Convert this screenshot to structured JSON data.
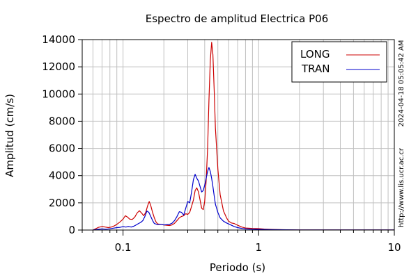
{
  "chart_data": {
    "type": "line",
    "title": "Espectro de amplitud Electrica P06",
    "xlabel": "Periodo (s)",
    "ylabel": "Amplitud (cm/s)",
    "xscale": "log",
    "xlim": [
      0.05,
      10
    ],
    "ylim": [
      0,
      14000
    ],
    "x_ticks": [
      0.1,
      1,
      10
    ],
    "x_tick_labels": [
      "0.1",
      "1",
      "10"
    ],
    "y_ticks": [
      0,
      2000,
      4000,
      6000,
      8000,
      10000,
      12000,
      14000
    ],
    "y_tick_labels": [
      "0",
      "2000",
      "4000",
      "6000",
      "8000",
      "10000",
      "12000",
      "14000"
    ],
    "grid": true,
    "legend_position": "top-right",
    "side_texts": [
      "2024-04-18 05:05:42 AM",
      "http://www.lis.ucr.ac.cr"
    ],
    "series": [
      {
        "name": "LONG",
        "color": "#cc0000",
        "points": [
          [
            0.06,
            0
          ],
          [
            0.063,
            100
          ],
          [
            0.066,
            200
          ],
          [
            0.07,
            260
          ],
          [
            0.074,
            220
          ],
          [
            0.078,
            180
          ],
          [
            0.082,
            220
          ],
          [
            0.086,
            300
          ],
          [
            0.09,
            420
          ],
          [
            0.095,
            600
          ],
          [
            0.1,
            800
          ],
          [
            0.104,
            1050
          ],
          [
            0.108,
            950
          ],
          [
            0.112,
            800
          ],
          [
            0.117,
            780
          ],
          [
            0.122,
            950
          ],
          [
            0.127,
            1250
          ],
          [
            0.132,
            1420
          ],
          [
            0.137,
            1250
          ],
          [
            0.142,
            1050
          ],
          [
            0.147,
            1300
          ],
          [
            0.152,
            1800
          ],
          [
            0.156,
            2100
          ],
          [
            0.16,
            1800
          ],
          [
            0.165,
            1300
          ],
          [
            0.17,
            900
          ],
          [
            0.175,
            600
          ],
          [
            0.18,
            450
          ],
          [
            0.19,
            420
          ],
          [
            0.2,
            380
          ],
          [
            0.21,
            350
          ],
          [
            0.22,
            330
          ],
          [
            0.23,
            380
          ],
          [
            0.24,
            500
          ],
          [
            0.25,
            700
          ],
          [
            0.26,
            900
          ],
          [
            0.27,
            1000
          ],
          [
            0.28,
            1050
          ],
          [
            0.29,
            1200
          ],
          [
            0.3,
            1150
          ],
          [
            0.31,
            1300
          ],
          [
            0.32,
            1750
          ],
          [
            0.33,
            2200
          ],
          [
            0.34,
            2900
          ],
          [
            0.35,
            3100
          ],
          [
            0.36,
            2800
          ],
          [
            0.37,
            2200
          ],
          [
            0.38,
            1600
          ],
          [
            0.39,
            1500
          ],
          [
            0.4,
            2100
          ],
          [
            0.41,
            3600
          ],
          [
            0.42,
            6000
          ],
          [
            0.43,
            9500
          ],
          [
            0.44,
            12500
          ],
          [
            0.45,
            13800
          ],
          [
            0.46,
            12900
          ],
          [
            0.47,
            10200
          ],
          [
            0.48,
            7500
          ],
          [
            0.5,
            4500
          ],
          [
            0.52,
            2600
          ],
          [
            0.55,
            1400
          ],
          [
            0.58,
            900
          ],
          [
            0.6,
            650
          ],
          [
            0.63,
            520
          ],
          [
            0.66,
            480
          ],
          [
            0.7,
            350
          ],
          [
            0.75,
            220
          ],
          [
            0.8,
            150
          ],
          [
            0.9,
            120
          ],
          [
            1,
            100
          ],
          [
            1.1,
            70
          ],
          [
            1.3,
            40
          ],
          [
            1.6,
            20
          ],
          [
            2,
            10
          ],
          [
            3,
            5
          ],
          [
            10,
            5
          ]
        ]
      },
      {
        "name": "TRAN",
        "color": "#0000cc",
        "points": [
          [
            0.06,
            0
          ],
          [
            0.065,
            50
          ],
          [
            0.07,
            80
          ],
          [
            0.075,
            60
          ],
          [
            0.08,
            90
          ],
          [
            0.085,
            140
          ],
          [
            0.09,
            180
          ],
          [
            0.095,
            200
          ],
          [
            0.1,
            250
          ],
          [
            0.105,
            220
          ],
          [
            0.11,
            260
          ],
          [
            0.115,
            220
          ],
          [
            0.12,
            280
          ],
          [
            0.125,
            380
          ],
          [
            0.13,
            480
          ],
          [
            0.135,
            560
          ],
          [
            0.14,
            700
          ],
          [
            0.145,
            1000
          ],
          [
            0.15,
            1400
          ],
          [
            0.155,
            1300
          ],
          [
            0.16,
            1000
          ],
          [
            0.165,
            700
          ],
          [
            0.17,
            480
          ],
          [
            0.18,
            400
          ],
          [
            0.19,
            420
          ],
          [
            0.2,
            380
          ],
          [
            0.21,
            400
          ],
          [
            0.22,
            420
          ],
          [
            0.23,
            500
          ],
          [
            0.24,
            700
          ],
          [
            0.25,
            1000
          ],
          [
            0.26,
            1350
          ],
          [
            0.27,
            1300
          ],
          [
            0.28,
            1100
          ],
          [
            0.29,
            1600
          ],
          [
            0.3,
            2100
          ],
          [
            0.31,
            2000
          ],
          [
            0.32,
            2800
          ],
          [
            0.33,
            3700
          ],
          [
            0.34,
            4100
          ],
          [
            0.35,
            3800
          ],
          [
            0.36,
            3600
          ],
          [
            0.37,
            3200
          ],
          [
            0.38,
            2800
          ],
          [
            0.39,
            2900
          ],
          [
            0.4,
            3300
          ],
          [
            0.41,
            3800
          ],
          [
            0.42,
            4300
          ],
          [
            0.43,
            4600
          ],
          [
            0.44,
            4300
          ],
          [
            0.45,
            3800
          ],
          [
            0.46,
            3200
          ],
          [
            0.47,
            2500
          ],
          [
            0.48,
            1900
          ],
          [
            0.5,
            1300
          ],
          [
            0.52,
            900
          ],
          [
            0.55,
            650
          ],
          [
            0.58,
            520
          ],
          [
            0.6,
            450
          ],
          [
            0.63,
            350
          ],
          [
            0.66,
            260
          ],
          [
            0.7,
            180
          ],
          [
            0.75,
            120
          ],
          [
            0.8,
            80
          ],
          [
            0.9,
            60
          ],
          [
            1,
            50
          ],
          [
            1.2,
            30
          ],
          [
            1.5,
            20
          ],
          [
            2,
            10
          ],
          [
            3,
            5
          ],
          [
            10,
            5
          ]
        ]
      }
    ]
  }
}
